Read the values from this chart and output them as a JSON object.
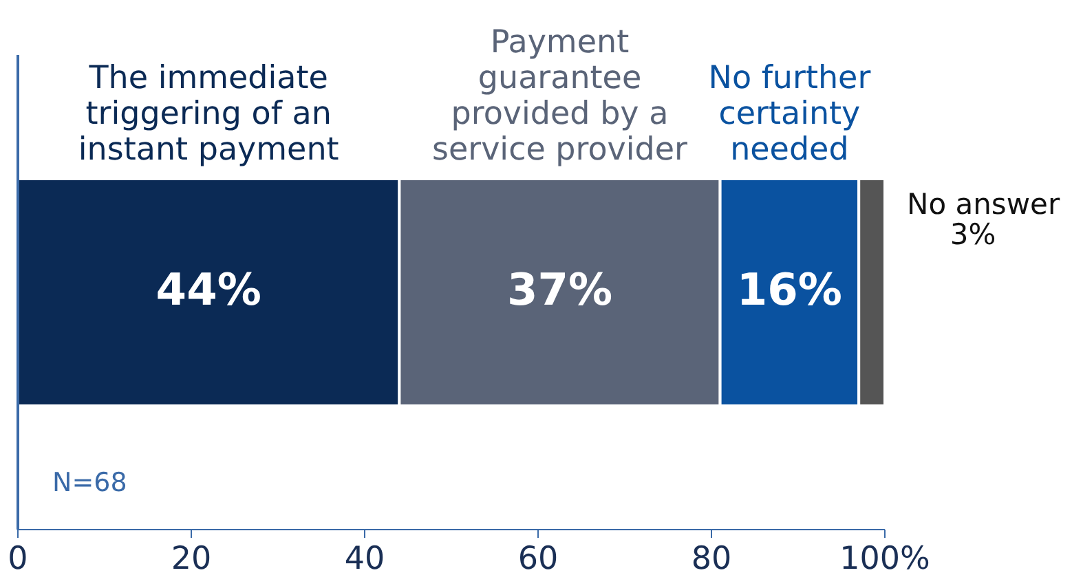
{
  "chart_data": {
    "type": "bar",
    "orientation": "horizontal",
    "stacked": true,
    "categories": [
      null
    ],
    "series": [
      {
        "name": "The immediate triggering of an instant payment",
        "color": "#0b2a55",
        "values": [
          44
        ],
        "value_labels": [
          "44%"
        ]
      },
      {
        "name": "Payment guarantee provided by a service provider",
        "color": "#5a6478",
        "values": [
          37
        ],
        "value_labels": [
          "37%"
        ]
      },
      {
        "name": "No further certainty needed",
        "color": "#0a52a0",
        "values": [
          16
        ],
        "value_labels": [
          "16%"
        ]
      },
      {
        "name": "No answer",
        "color": "#555555",
        "values": [
          3
        ],
        "value_labels": [
          "3%"
        ]
      }
    ],
    "xlim": [
      0,
      100
    ],
    "xticks": [
      0,
      20,
      40,
      60,
      80,
      {
        "value": 100,
        "label": "100%"
      }
    ],
    "annotations": [
      "N=68"
    ]
  }
}
